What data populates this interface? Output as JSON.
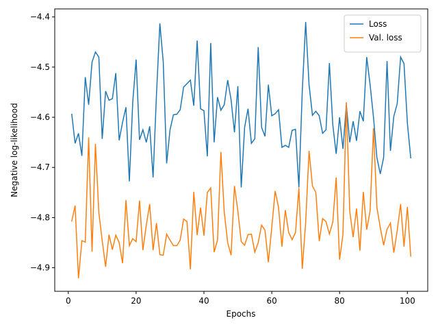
{
  "chart_data": {
    "type": "line",
    "xlabel": "Epochs",
    "ylabel": "Negative log-likelihood",
    "x": [
      1,
      2,
      3,
      4,
      5,
      6,
      7,
      8,
      9,
      10,
      11,
      12,
      13,
      14,
      15,
      16,
      17,
      18,
      19,
      20,
      21,
      22,
      23,
      24,
      25,
      26,
      27,
      28,
      29,
      30,
      31,
      32,
      33,
      34,
      35,
      36,
      37,
      38,
      39,
      40,
      41,
      42,
      43,
      44,
      45,
      46,
      47,
      48,
      49,
      50,
      51,
      52,
      53,
      54,
      55,
      56,
      57,
      58,
      59,
      60,
      61,
      62,
      63,
      64,
      65,
      66,
      67,
      68,
      69,
      70,
      71,
      72,
      73,
      74,
      75,
      76,
      77,
      78,
      79,
      80,
      81,
      82,
      83,
      84,
      85,
      86,
      87,
      88,
      89,
      90,
      91,
      92,
      93,
      94,
      95,
      96,
      97,
      98,
      99,
      100,
      101
    ],
    "series": [
      {
        "name": "Loss",
        "color": "#1f77b4",
        "values": [
          -4.593,
          -4.652,
          -4.632,
          -4.677,
          -4.52,
          -4.575,
          -4.49,
          -4.47,
          -4.48,
          -4.643,
          -4.548,
          -4.566,
          -4.563,
          -4.512,
          -4.646,
          -4.61,
          -4.58,
          -4.728,
          -4.57,
          -4.485,
          -4.645,
          -4.625,
          -4.65,
          -4.618,
          -4.72,
          -4.555,
          -4.413,
          -4.49,
          -4.692,
          -4.625,
          -4.595,
          -4.594,
          -4.585,
          -4.54,
          -4.533,
          -4.526,
          -4.577,
          -4.447,
          -4.583,
          -4.587,
          -4.678,
          -4.452,
          -4.65,
          -4.56,
          -4.586,
          -4.575,
          -4.526,
          -4.565,
          -4.63,
          -4.538,
          -4.74,
          -4.62,
          -4.583,
          -4.652,
          -4.643,
          -4.46,
          -4.62,
          -4.638,
          -4.535,
          -4.597,
          -4.593,
          -4.585,
          -4.66,
          -4.656,
          -4.66,
          -4.626,
          -4.624,
          -4.74,
          -4.548,
          -4.41,
          -4.535,
          -4.596,
          -4.588,
          -4.597,
          -4.632,
          -4.625,
          -4.492,
          -4.615,
          -4.673,
          -4.6,
          -4.663,
          -4.575,
          -4.65,
          -4.608,
          -4.647,
          -4.588,
          -4.608,
          -4.48,
          -4.535,
          -4.6,
          -4.68,
          -4.713,
          -4.68,
          -4.488,
          -4.667,
          -4.598,
          -4.573,
          -4.48,
          -4.493,
          -4.612,
          -4.682
        ]
      },
      {
        "name": "Val. loss",
        "color": "#ff7f0e",
        "values": [
          -4.808,
          -4.776,
          -4.921,
          -4.846,
          -4.849,
          -4.64,
          -4.868,
          -4.653,
          -4.79,
          -4.846,
          -4.898,
          -4.834,
          -4.864,
          -4.835,
          -4.85,
          -4.891,
          -4.765,
          -4.856,
          -4.842,
          -4.848,
          -4.766,
          -4.865,
          -4.815,
          -4.773,
          -4.865,
          -4.811,
          -4.874,
          -4.875,
          -4.833,
          -4.845,
          -4.856,
          -4.856,
          -4.845,
          -4.803,
          -4.808,
          -4.903,
          -4.749,
          -4.835,
          -4.78,
          -4.836,
          -4.75,
          -4.741,
          -4.869,
          -4.845,
          -4.669,
          -4.79,
          -4.85,
          -4.875,
          -4.737,
          -4.787,
          -4.848,
          -4.855,
          -4.834,
          -4.833,
          -4.869,
          -4.85,
          -4.815,
          -4.825,
          -4.889,
          -4.82,
          -4.747,
          -4.78,
          -4.858,
          -4.785,
          -4.83,
          -4.844,
          -4.83,
          -4.741,
          -4.902,
          -4.81,
          -4.667,
          -4.737,
          -4.75,
          -4.847,
          -4.802,
          -4.808,
          -4.833,
          -4.809,
          -4.72,
          -4.884,
          -4.833,
          -4.57,
          -4.787,
          -4.839,
          -4.782,
          -4.866,
          -4.749,
          -4.824,
          -4.787,
          -4.622,
          -4.779,
          -4.82,
          -4.855,
          -4.823,
          -4.811,
          -4.87,
          -4.826,
          -4.773,
          -4.858,
          -4.779,
          -4.878
        ]
      }
    ],
    "xlim": [
      -4,
      106
    ],
    "xticks": [
      0,
      20,
      40,
      60,
      80,
      100
    ],
    "ylim": [
      -4.947,
      -4.384
    ],
    "yticks": [
      {
        "value": -4.9,
        "label": "−4.9"
      },
      {
        "value": -4.8,
        "label": "−4.8"
      },
      {
        "value": -4.7,
        "label": "−4.7"
      },
      {
        "value": -4.6,
        "label": "−4.6"
      },
      {
        "value": -4.5,
        "label": "−4.5"
      },
      {
        "value": -4.4,
        "label": "−4.4"
      }
    ],
    "legend": "upper right"
  }
}
